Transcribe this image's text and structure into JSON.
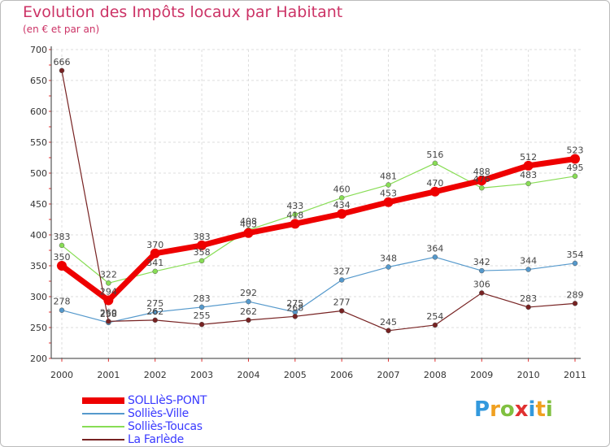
{
  "header": {
    "title": "Evolution des Impôts locaux par Habitant",
    "subtitle": "(en € et par an)"
  },
  "brand": {
    "letters": [
      "P",
      "r",
      "o",
      "x",
      "i",
      "t",
      "i"
    ],
    "colors": [
      "#3399dd",
      "#f0a020",
      "#80c040",
      "#e03030",
      "#3399dd",
      "#f0a020",
      "#80c040"
    ]
  },
  "chart_data": {
    "type": "line",
    "title": "Evolution des Impôts locaux par Habitant",
    "subtitle": "(en € et par an)",
    "xlabel": "",
    "ylabel": "",
    "ylim": [
      200,
      700
    ],
    "yticks": [
      200,
      250,
      300,
      350,
      400,
      450,
      500,
      550,
      600,
      650,
      700
    ],
    "grid": true,
    "legend_position": "bottom-left",
    "categories": [
      "2000",
      "2001",
      "2002",
      "2003",
      "2004",
      "2005",
      "2006",
      "2007",
      "2008",
      "2009",
      "2010",
      "2011"
    ],
    "series": [
      {
        "name": "SOLLIèS-PONT",
        "color": "#ee0000",
        "values": [
          350,
          294,
          370,
          383,
          403,
          418,
          434,
          453,
          470,
          488,
          512,
          523
        ]
      },
      {
        "name": "Solliès-Ville",
        "color": "#5599cc",
        "values": [
          278,
          258,
          275,
          283,
          292,
          275,
          327,
          348,
          364,
          342,
          344,
          354
        ]
      },
      {
        "name": "Solliès-Toucas",
        "color": "#88dd55",
        "values": [
          383,
          322,
          341,
          358,
          408,
          433,
          460,
          481,
          516,
          476,
          483,
          495
        ]
      },
      {
        "name": "La Farlède",
        "color": "#772222",
        "values": [
          666,
          260,
          262,
          255,
          262,
          268,
          277,
          245,
          254,
          306,
          283,
          289
        ]
      }
    ]
  }
}
